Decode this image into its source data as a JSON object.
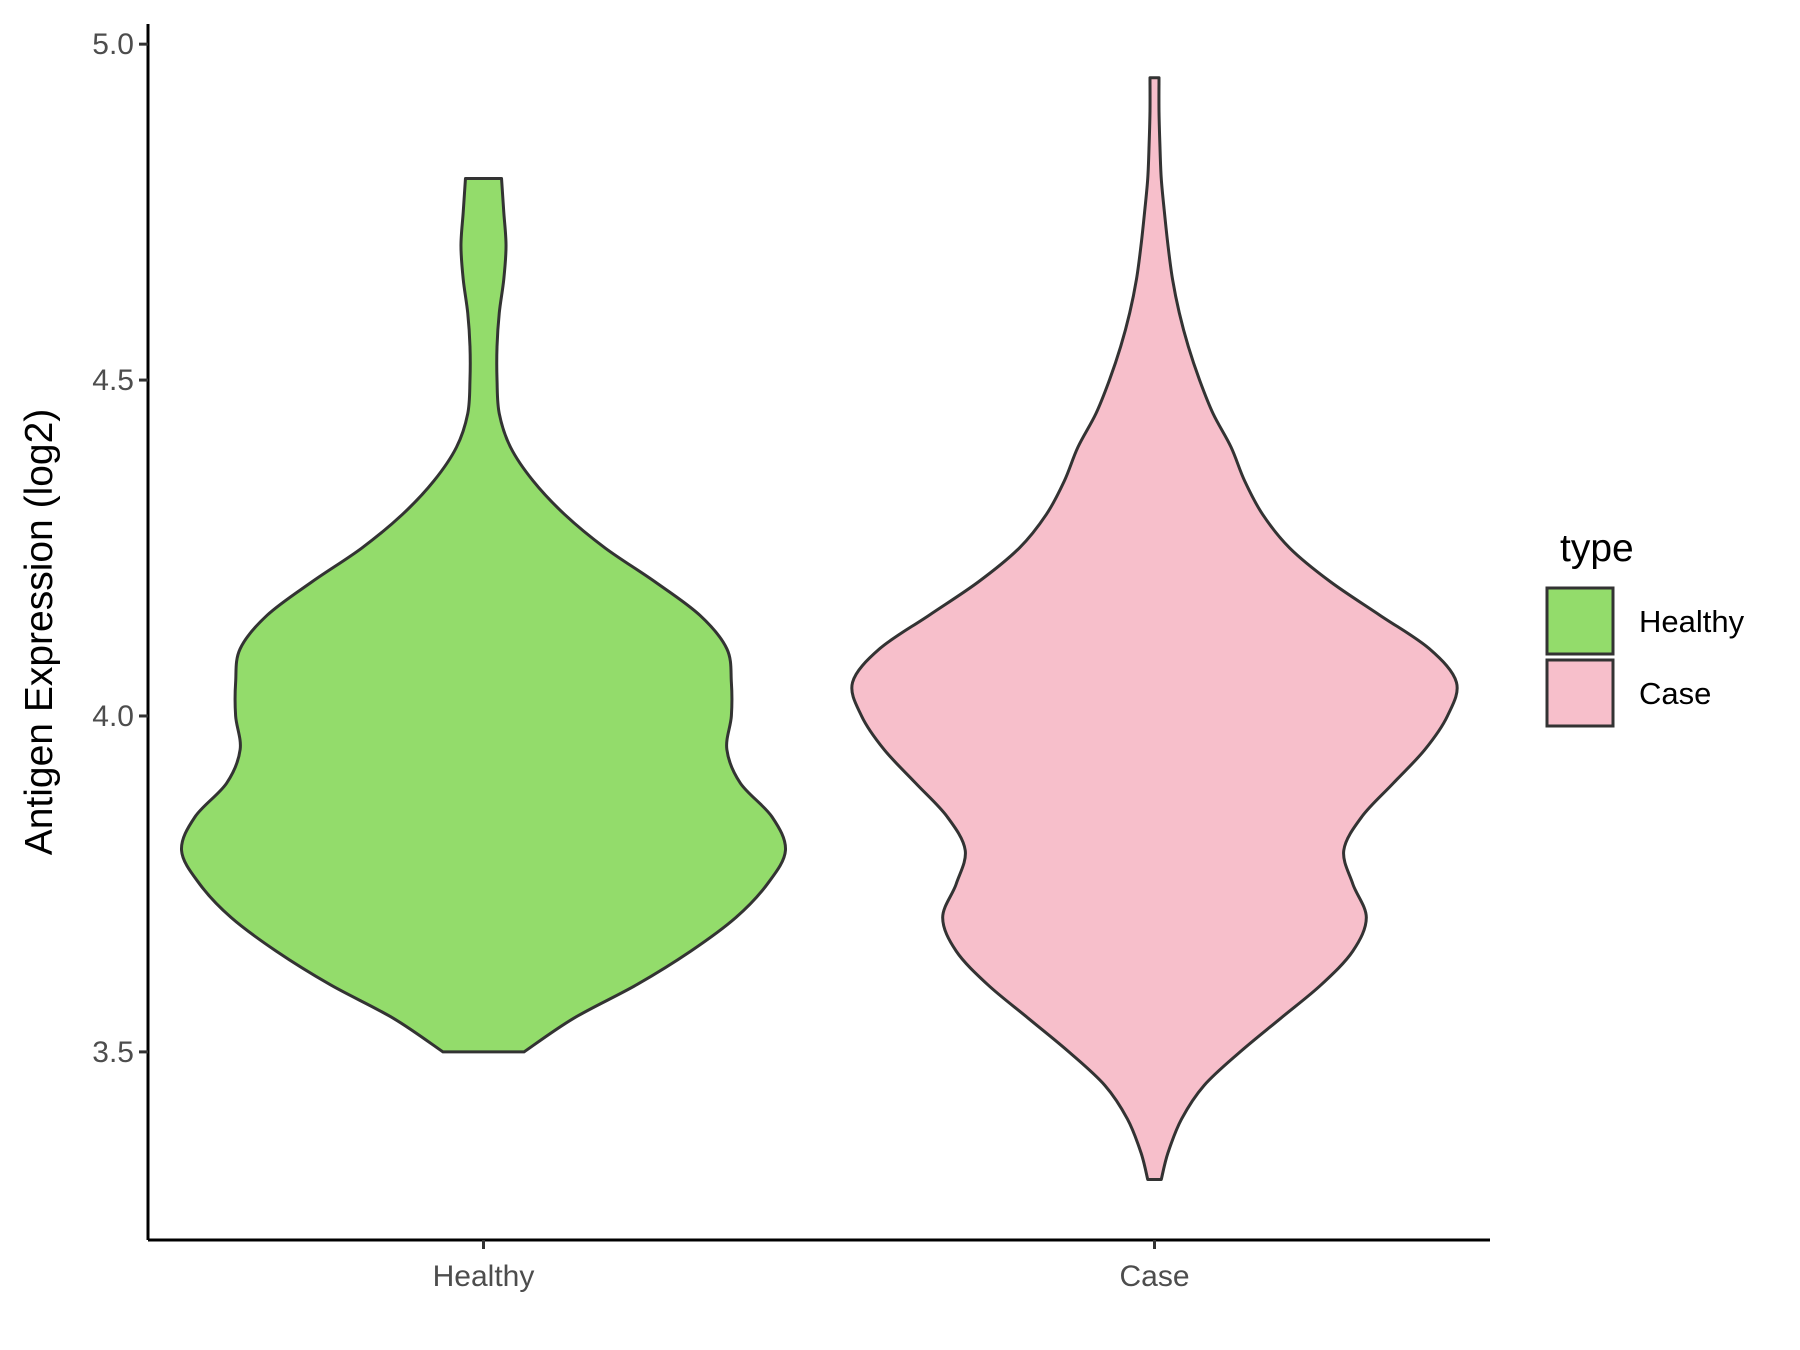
{
  "chart_data": {
    "type": "violin",
    "categories": [
      "Healthy",
      "Case"
    ],
    "ylabel": "Antigen Expression (log2)",
    "xlabel": "",
    "ylim": [
      3.22,
      5.03
    ],
    "yticks": [
      3.5,
      4.0,
      4.5,
      5.0
    ],
    "ytick_labels": [
      "3.5",
      "4.0",
      "4.5",
      "5.0"
    ],
    "grid": false,
    "legend": {
      "title": "type",
      "position": "right",
      "entries": [
        {
          "label": "Healthy",
          "color": "#93dc6b"
        },
        {
          "label": "Case",
          "color": "#f7bfcb"
        }
      ]
    },
    "series": [
      {
        "category": "Healthy",
        "color": "#93dc6b",
        "y_range": [
          3.5,
          4.8
        ],
        "density_profile": [
          [
            3.5,
            0.09
          ],
          [
            3.55,
            0.2
          ],
          [
            3.6,
            0.34
          ],
          [
            3.65,
            0.46
          ],
          [
            3.7,
            0.56
          ],
          [
            3.75,
            0.63
          ],
          [
            3.8,
            0.67
          ],
          [
            3.85,
            0.64
          ],
          [
            3.9,
            0.57
          ],
          [
            3.95,
            0.54
          ],
          [
            4.0,
            0.55
          ],
          [
            4.05,
            0.55
          ],
          [
            4.1,
            0.54
          ],
          [
            4.15,
            0.48
          ],
          [
            4.2,
            0.38
          ],
          [
            4.25,
            0.27
          ],
          [
            4.3,
            0.18
          ],
          [
            4.35,
            0.11
          ],
          [
            4.4,
            0.06
          ],
          [
            4.45,
            0.035
          ],
          [
            4.5,
            0.03
          ],
          [
            4.55,
            0.03
          ],
          [
            4.6,
            0.035
          ],
          [
            4.65,
            0.045
          ],
          [
            4.7,
            0.05
          ],
          [
            4.75,
            0.045
          ],
          [
            4.8,
            0.04
          ]
        ]
      },
      {
        "category": "Case",
        "color": "#f7bfcb",
        "y_range": [
          3.31,
          4.95
        ],
        "density_profile": [
          [
            3.31,
            0.015
          ],
          [
            3.35,
            0.03
          ],
          [
            3.4,
            0.06
          ],
          [
            3.45,
            0.11
          ],
          [
            3.5,
            0.19
          ],
          [
            3.55,
            0.28
          ],
          [
            3.6,
            0.37
          ],
          [
            3.65,
            0.44
          ],
          [
            3.7,
            0.47
          ],
          [
            3.75,
            0.44
          ],
          [
            3.8,
            0.42
          ],
          [
            3.85,
            0.46
          ],
          [
            3.9,
            0.53
          ],
          [
            3.95,
            0.6
          ],
          [
            4.0,
            0.65
          ],
          [
            4.05,
            0.67
          ],
          [
            4.1,
            0.61
          ],
          [
            4.15,
            0.5
          ],
          [
            4.2,
            0.39
          ],
          [
            4.25,
            0.3
          ],
          [
            4.3,
            0.24
          ],
          [
            4.35,
            0.2
          ],
          [
            4.4,
            0.17
          ],
          [
            4.45,
            0.13
          ],
          [
            4.5,
            0.1
          ],
          [
            4.55,
            0.075
          ],
          [
            4.6,
            0.055
          ],
          [
            4.65,
            0.04
          ],
          [
            4.7,
            0.03
          ],
          [
            4.75,
            0.022
          ],
          [
            4.8,
            0.015
          ],
          [
            4.85,
            0.012
          ],
          [
            4.9,
            0.01
          ],
          [
            4.95,
            0.01
          ]
        ]
      }
    ]
  }
}
